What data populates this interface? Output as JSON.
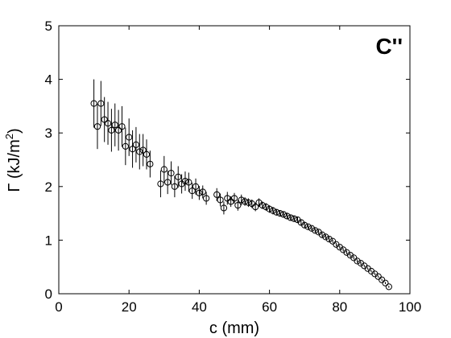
{
  "chart_data": {
    "type": "scatter",
    "title": "",
    "panel_label": "C''",
    "xlabel": "c (mm)",
    "ylabel_prefix": "Γ (kJ/m",
    "ylabel_sup": "2",
    "ylabel_suffix": ")",
    "xlim": [
      0,
      100
    ],
    "ylim": [
      0,
      5
    ],
    "xticks": [
      0,
      20,
      40,
      60,
      80,
      100
    ],
    "yticks": [
      0,
      1,
      2,
      3,
      4,
      5
    ],
    "grid": false,
    "legend": "none",
    "marker": "open-circle",
    "marker_color": "#000000",
    "series": [
      {
        "x": [
          10.0,
          11.0,
          12.0,
          13.0,
          14.0,
          15.0,
          16.0,
          17.0,
          18.0,
          19.0,
          20.0,
          21.0,
          22.0,
          23.0,
          24.0,
          25.0,
          26.0,
          29.0,
          30.0,
          31.0,
          32.0,
          33.0,
          34.0,
          35.0,
          36.0,
          37.0,
          38.0,
          39.0,
          40.0,
          41.0,
          42.0,
          45.0,
          46.0,
          47.0,
          48.0,
          49.0,
          50.0,
          51.0,
          52.0,
          53.0,
          54.0,
          55.0,
          56.0,
          57.0,
          58.0,
          59.0,
          60.0,
          61.0,
          62.0,
          63.0,
          64.0,
          65.0,
          66.0,
          67.0,
          68.0,
          69.0,
          70.0,
          71.0,
          72.0,
          73.0,
          74.0,
          75.0,
          76.0,
          77.0,
          78.0,
          79.0,
          80.0,
          81.0,
          82.0,
          83.0,
          84.0,
          85.0,
          86.0,
          87.0,
          88.0,
          89.0,
          90.0,
          91.0,
          92.0,
          93.0,
          94.0
        ],
        "y": [
          3.55,
          3.12,
          3.55,
          3.25,
          3.18,
          3.05,
          3.15,
          3.05,
          3.12,
          2.75,
          2.92,
          2.7,
          2.78,
          2.65,
          2.68,
          2.6,
          2.42,
          2.05,
          2.32,
          2.08,
          2.25,
          2.0,
          2.18,
          2.05,
          2.1,
          2.08,
          1.92,
          2.0,
          1.88,
          1.9,
          1.78,
          1.85,
          1.75,
          1.6,
          1.78,
          1.72,
          1.78,
          1.65,
          1.75,
          1.72,
          1.7,
          1.68,
          1.62,
          1.7,
          1.65,
          1.62,
          1.58,
          1.55,
          1.52,
          1.5,
          1.48,
          1.45,
          1.42,
          1.4,
          1.38,
          1.33,
          1.28,
          1.25,
          1.22,
          1.18,
          1.15,
          1.1,
          1.06,
          1.02,
          0.98,
          0.92,
          0.87,
          0.82,
          0.77,
          0.72,
          0.67,
          0.61,
          0.57,
          0.52,
          0.47,
          0.42,
          0.37,
          0.32,
          0.26,
          0.2,
          0.13
        ],
        "err": [
          0.45,
          0.42,
          0.42,
          0.42,
          0.4,
          0.4,
          0.4,
          0.38,
          0.38,
          0.35,
          0.35,
          0.35,
          0.33,
          0.33,
          0.3,
          0.28,
          0.25,
          0.25,
          0.25,
          0.22,
          0.22,
          0.2,
          0.2,
          0.18,
          0.18,
          0.18,
          0.15,
          0.15,
          0.13,
          0.12,
          0.12,
          0.12,
          0.12,
          0.12,
          0.12,
          0.1,
          0.1,
          0.1,
          0.1,
          0.08,
          0.08,
          0.08,
          0.08,
          0.08,
          0.07,
          0.07,
          0.07,
          0.07,
          0.06,
          0.06,
          0.06,
          0.06,
          0.05,
          0.05,
          0.05,
          0.05,
          0.05,
          0.04,
          0.04,
          0.04,
          0.04,
          0.04,
          0.04,
          0.04,
          0.03,
          0.03,
          0.03,
          0.03,
          0.03,
          0.03,
          0.03,
          0.03,
          0.03,
          0.02,
          0.02,
          0.02,
          0.02,
          0.02,
          0.02,
          0.02,
          0.02
        ]
      }
    ]
  }
}
